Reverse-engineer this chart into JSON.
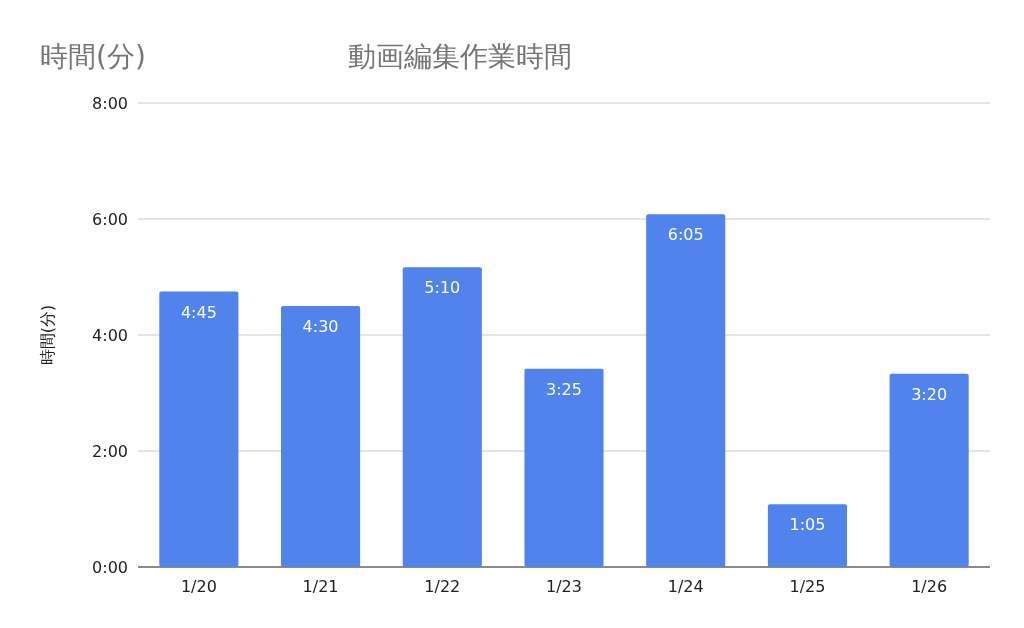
{
  "chart_data": {
    "type": "bar",
    "title": "動画編集作業時間",
    "ylabel": "時間(分)",
    "annotations": [
      "時間(分)"
    ],
    "categories": [
      "1/20",
      "1/21",
      "1/22",
      "1/23",
      "1/24",
      "1/25",
      "1/26"
    ],
    "values": [
      4.75,
      4.5,
      5.1667,
      3.4167,
      6.0833,
      1.0833,
      3.3333
    ],
    "value_labels": [
      "4:45",
      "4:30",
      "5:10",
      "3:25",
      "6:05",
      "1:05",
      "3:20"
    ],
    "color": "#5083ec",
    "ylim": [
      0,
      8
    ],
    "yticks": [
      {
        "value": 0,
        "label": "0:00"
      },
      {
        "value": 2,
        "label": "2:00"
      },
      {
        "value": 4,
        "label": "4:00"
      },
      {
        "value": 6,
        "label": "6:00"
      },
      {
        "value": 8,
        "label": "8:00"
      }
    ],
    "grid": "y"
  }
}
